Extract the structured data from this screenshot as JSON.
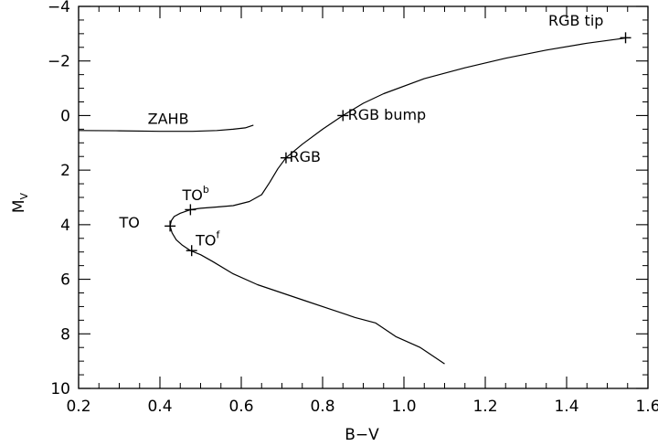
{
  "chart_data": {
    "type": "line",
    "title": "",
    "xlabel": "B−V",
    "ylabel": "M",
    "ylabel_subscript": "V",
    "xlim": [
      0.2,
      1.6
    ],
    "ylim": [
      10,
      -4
    ],
    "y_inverted": true,
    "grid": false,
    "legend": "none",
    "xticks": [
      0.2,
      0.4,
      0.6,
      0.8,
      1.0,
      1.2,
      1.4,
      1.6
    ],
    "xtick_labels": [
      "0.2",
      "0.4",
      "0.6",
      "0.8",
      "1.0",
      "1.2",
      "1.4",
      "1.6"
    ],
    "yticks": [
      -4,
      -2,
      0,
      2,
      4,
      6,
      8,
      10
    ],
    "ytick_labels": [
      "−4",
      "−2",
      "0",
      "2",
      "4",
      "6",
      "8",
      "10"
    ],
    "series": [
      {
        "x": [
          1.1,
          1.04,
          0.98,
          0.93,
          0.88,
          0.82,
          0.76,
          0.7,
          0.64,
          0.58,
          0.53,
          0.5,
          0.475,
          0.455,
          0.44,
          0.43,
          0.425,
          0.428,
          0.435,
          0.45,
          0.475,
          0.5,
          0.54,
          0.58,
          0.62,
          0.65,
          0.67,
          0.69,
          0.71,
          0.75,
          0.8,
          0.85,
          0.9,
          0.95,
          1.05,
          1.15,
          1.25,
          1.35,
          1.45,
          1.55
        ],
        "y": [
          9.1,
          8.5,
          8.1,
          7.6,
          7.4,
          7.1,
          6.8,
          6.5,
          6.2,
          5.8,
          5.35,
          5.1,
          4.95,
          4.75,
          4.55,
          4.3,
          4.05,
          3.85,
          3.7,
          3.58,
          3.45,
          3.4,
          3.35,
          3.3,
          3.15,
          2.9,
          2.45,
          1.95,
          1.55,
          1.05,
          0.5,
          0.0,
          -0.45,
          -0.8,
          -1.35,
          -1.75,
          -2.1,
          -2.4,
          -2.65,
          -2.85
        ]
      },
      {
        "x": [
          0.2,
          0.3,
          0.4,
          0.48,
          0.54,
          0.58,
          0.61,
          0.63
        ],
        "y": [
          0.55,
          0.56,
          0.58,
          0.58,
          0.55,
          0.5,
          0.45,
          0.35
        ]
      }
    ],
    "markers": [
      {
        "x": 1.545,
        "y": -2.85
      },
      {
        "x": 0.85,
        "y": 0.0
      },
      {
        "x": 0.71,
        "y": 1.55
      },
      {
        "x": 0.475,
        "y": 3.45
      },
      {
        "x": 0.425,
        "y": 4.05
      },
      {
        "x": 0.478,
        "y": 4.95
      }
    ],
    "annotations": [
      {
        "text": "RGB tip",
        "sup": "",
        "x": 1.355,
        "y": -3.3
      },
      {
        "text": "RGB bump",
        "sup": "",
        "x": 0.862,
        "y": 0.15
      },
      {
        "text": "RGB",
        "sup": "",
        "x": 0.718,
        "y": 1.7
      },
      {
        "text": "TO",
        "sup": "b",
        "x": 0.455,
        "y": 3.1
      },
      {
        "text": "TO",
        "sup": "",
        "x": 0.3,
        "y": 4.1
      },
      {
        "text": "TO",
        "sup": "f",
        "x": 0.488,
        "y": 4.75
      },
      {
        "text": "ZAHB",
        "sup": "",
        "x": 0.37,
        "y": 0.3
      }
    ]
  }
}
